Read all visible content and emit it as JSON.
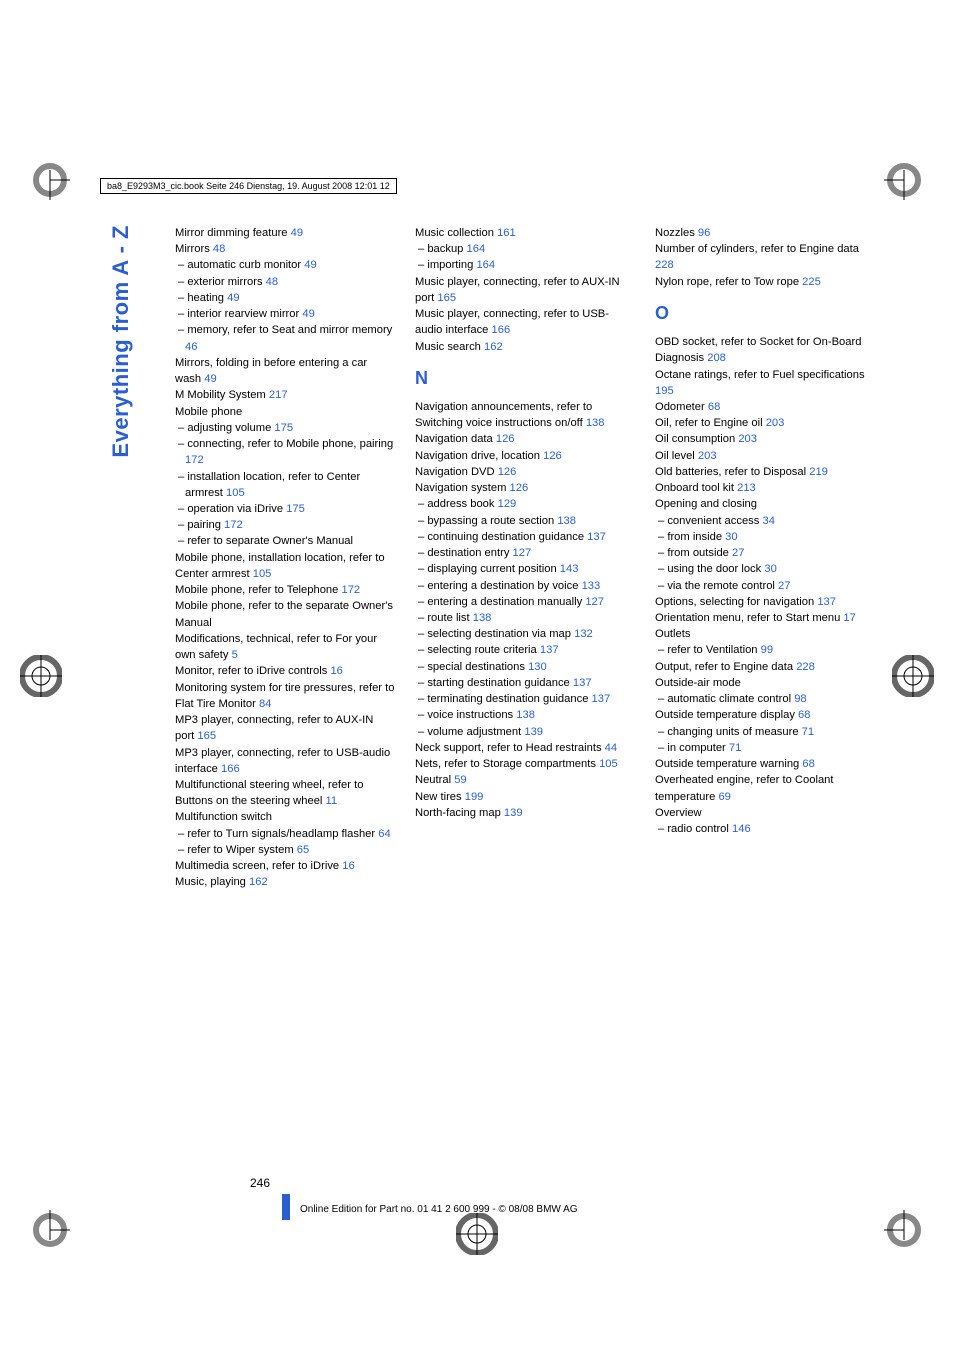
{
  "print": {
    "header_line": "ba8_E9293M3_cic.book  Seite 246  Dienstag, 19. August 2008  12:01 12"
  },
  "vertical_title": "Everything from A - Z",
  "link_color": "#2b5fd0",
  "cols": {
    "c1": [
      {
        "t": "Mirror dimming feature ",
        "p": "49"
      },
      {
        "t": "Mirrors ",
        "p": "48"
      },
      {
        "t": "– automatic curb monitor ",
        "p": "49",
        "s": true
      },
      {
        "t": "– exterior mirrors ",
        "p": "48",
        "s": true
      },
      {
        "t": "– heating ",
        "p": "49",
        "s": true
      },
      {
        "t": "– interior rearview mirror ",
        "p": "49",
        "s": true
      },
      {
        "t": "– memory, refer to Seat and mirror memory ",
        "p": "46",
        "s": true
      },
      {
        "t": "Mirrors, folding in before entering a car wash ",
        "p": "49"
      },
      {
        "t": "M Mobility System ",
        "p": "217"
      },
      {
        "t": "Mobile phone",
        "p": ""
      },
      {
        "t": "– adjusting volume ",
        "p": "175",
        "s": true
      },
      {
        "t": "– connecting, refer to Mobile phone, pairing ",
        "p": "172",
        "s": true
      },
      {
        "t": "– installation location, refer to Center armrest ",
        "p": "105",
        "s": true
      },
      {
        "t": "– operation via iDrive ",
        "p": "175",
        "s": true
      },
      {
        "t": "– pairing ",
        "p": "172",
        "s": true
      },
      {
        "t": "– refer to separate Owner's Manual",
        "p": "",
        "s": true
      },
      {
        "t": "Mobile phone, installation location, refer to Center armrest ",
        "p": "105"
      },
      {
        "t": "Mobile phone, refer to Telephone ",
        "p": "172"
      },
      {
        "t": "Mobile phone, refer to the separate Owner's Manual",
        "p": ""
      },
      {
        "t": "Modifications, technical, refer to For your own safety ",
        "p": "5"
      },
      {
        "t": "Monitor, refer to iDrive controls ",
        "p": "16"
      },
      {
        "t": "Monitoring system for tire pressures, refer to Flat Tire Monitor ",
        "p": "84"
      },
      {
        "t": "MP3 player, connecting, refer to AUX-IN port ",
        "p": "165"
      },
      {
        "t": "MP3 player, connecting, refer to USB-audio interface ",
        "p": "166"
      },
      {
        "t": "Multifunctional steering wheel, refer to Buttons on the steering wheel ",
        "p": "11"
      },
      {
        "t": "Multifunction switch",
        "p": ""
      },
      {
        "t": "– refer to Turn signals/headlamp flasher ",
        "p": "64",
        "s": true
      },
      {
        "t": "– refer to Wiper system ",
        "p": "65",
        "s": true
      },
      {
        "t": "Multimedia screen, refer to iDrive ",
        "p": "16"
      },
      {
        "t": "Music, playing ",
        "p": "162"
      }
    ],
    "c2a": [
      {
        "t": "Music collection ",
        "p": "161"
      },
      {
        "t": "– backup ",
        "p": "164",
        "s": true
      },
      {
        "t": "– importing ",
        "p": "164",
        "s": true
      },
      {
        "t": "Music player, connecting, refer to AUX-IN port ",
        "p": "165"
      },
      {
        "t": "Music player, connecting, refer to USB-audio interface ",
        "p": "166"
      },
      {
        "t": "Music search ",
        "p": "162"
      }
    ],
    "c2_letter": "N",
    "c2b": [
      {
        "t": "Navigation announcements, refer to Switching voice instructions on/off ",
        "p": "138"
      },
      {
        "t": "Navigation data ",
        "p": "126"
      },
      {
        "t": "Navigation drive, location ",
        "p": "126"
      },
      {
        "t": "Navigation DVD ",
        "p": "126"
      },
      {
        "t": "Navigation system ",
        "p": "126"
      },
      {
        "t": "– address book ",
        "p": "129",
        "s": true
      },
      {
        "t": "– bypassing a route section ",
        "p": "138",
        "s": true
      },
      {
        "t": "– continuing destination guidance ",
        "p": "137",
        "s": true
      },
      {
        "t": "– destination entry ",
        "p": "127",
        "s": true
      },
      {
        "t": "– displaying current position ",
        "p": "143",
        "s": true
      },
      {
        "t": "– entering a destination by voice ",
        "p": "133",
        "s": true
      },
      {
        "t": "– entering a destination manually ",
        "p": "127",
        "s": true
      },
      {
        "t": "– route list ",
        "p": "138",
        "s": true
      },
      {
        "t": "– selecting destination via map ",
        "p": "132",
        "s": true
      },
      {
        "t": "– selecting route criteria ",
        "p": "137",
        "s": true
      },
      {
        "t": "– special destinations ",
        "p": "130",
        "s": true
      },
      {
        "t": "– starting destination guidance ",
        "p": "137",
        "s": true
      },
      {
        "t": "– terminating destination guidance ",
        "p": "137",
        "s": true
      },
      {
        "t": "– voice instructions ",
        "p": "138",
        "s": true
      },
      {
        "t": "– volume adjustment ",
        "p": "139",
        "s": true
      },
      {
        "t": "Neck support, refer to Head restraints ",
        "p": "44"
      },
      {
        "t": "Nets, refer to Storage compartments ",
        "p": "105"
      },
      {
        "t": "Neutral ",
        "p": "59"
      },
      {
        "t": "New tires ",
        "p": "199"
      },
      {
        "t": "North-facing map ",
        "p": "139"
      }
    ],
    "c3a": [
      {
        "t": "Nozzles ",
        "p": "96"
      },
      {
        "t": "Number of cylinders, refer to Engine data ",
        "p": "228"
      },
      {
        "t": "Nylon rope, refer to Tow rope ",
        "p": "225"
      }
    ],
    "c3_letter": "O",
    "c3b": [
      {
        "t": "OBD socket, refer to Socket for On-Board Diagnosis ",
        "p": "208"
      },
      {
        "t": "Octane ratings, refer to Fuel specifications ",
        "p": "195"
      },
      {
        "t": "Odometer ",
        "p": "68"
      },
      {
        "t": "Oil, refer to Engine oil ",
        "p": "203"
      },
      {
        "t": "Oil consumption ",
        "p": "203"
      },
      {
        "t": "Oil level ",
        "p": "203"
      },
      {
        "t": "Old batteries, refer to Disposal ",
        "p": "219"
      },
      {
        "t": "Onboard tool kit ",
        "p": "213"
      },
      {
        "t": "Opening and closing",
        "p": ""
      },
      {
        "t": "– convenient access ",
        "p": "34",
        "s": true
      },
      {
        "t": "– from inside ",
        "p": "30",
        "s": true
      },
      {
        "t": "– from outside ",
        "p": "27",
        "s": true
      },
      {
        "t": "– using the door lock ",
        "p": "30",
        "s": true
      },
      {
        "t": "– via the remote control ",
        "p": "27",
        "s": true
      },
      {
        "t": "Options, selecting for navigation ",
        "p": "137"
      },
      {
        "t": "Orientation menu, refer to Start menu ",
        "p": "17"
      },
      {
        "t": "Outlets",
        "p": ""
      },
      {
        "t": "– refer to Ventilation ",
        "p": "99",
        "s": true
      },
      {
        "t": "Output, refer to Engine data ",
        "p": "228"
      },
      {
        "t": "Outside-air mode",
        "p": ""
      },
      {
        "t": "– automatic climate control ",
        "p": "98",
        "s": true
      },
      {
        "t": "Outside temperature display ",
        "p": "68"
      },
      {
        "t": "– changing units of measure ",
        "p": "71",
        "s": true
      },
      {
        "t": "– in computer ",
        "p": "71",
        "s": true
      },
      {
        "t": "Outside temperature warning ",
        "p": "68"
      },
      {
        "t": "Overheated engine, refer to Coolant temperature ",
        "p": "69"
      },
      {
        "t": "Overview",
        "p": ""
      },
      {
        "t": "– radio control ",
        "p": "146",
        "s": true
      }
    ]
  },
  "page_number": "246",
  "footer": "Online Edition for Part no. 01 41 2 600 999 - © 08/08 BMW AG"
}
